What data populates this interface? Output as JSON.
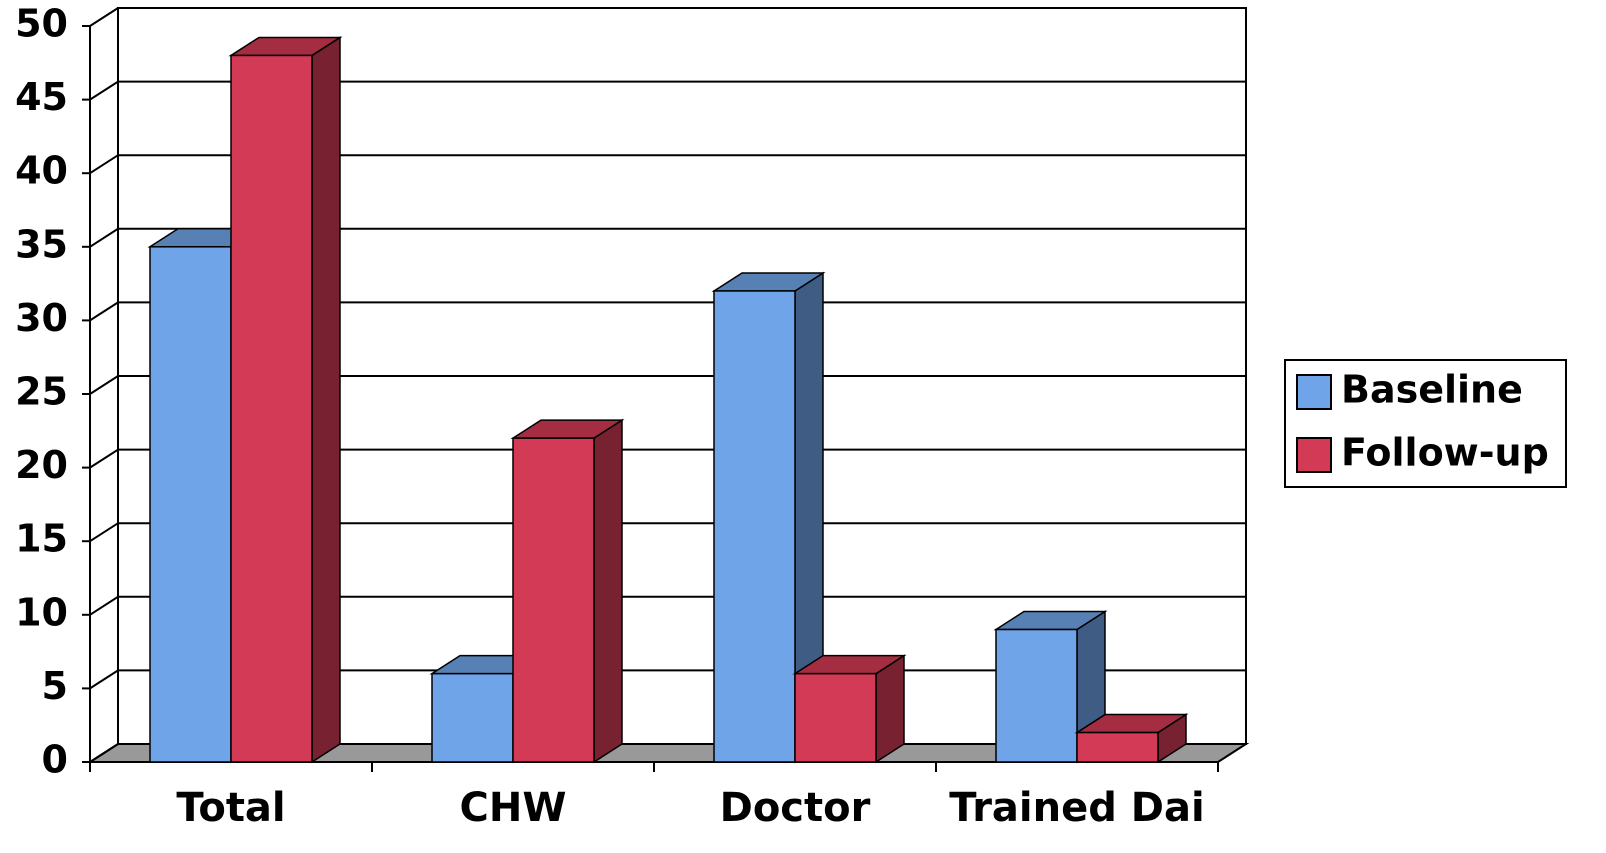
{
  "chart_data": {
    "type": "bar",
    "categories": [
      "Total",
      "CHW",
      "Doctor",
      "Trained Dai"
    ],
    "series": [
      {
        "name": "Baseline",
        "color": "#6fa4e8",
        "values": [
          35,
          6,
          32,
          9
        ]
      },
      {
        "name": "Follow-up",
        "color": "#d33a55",
        "values": [
          48,
          22,
          6,
          2
        ]
      }
    ],
    "ylim": [
      0,
      50
    ],
    "yticks": [
      0,
      5,
      10,
      15,
      20,
      25,
      30,
      35,
      40,
      45,
      50
    ],
    "grid": true,
    "legend": "right"
  }
}
